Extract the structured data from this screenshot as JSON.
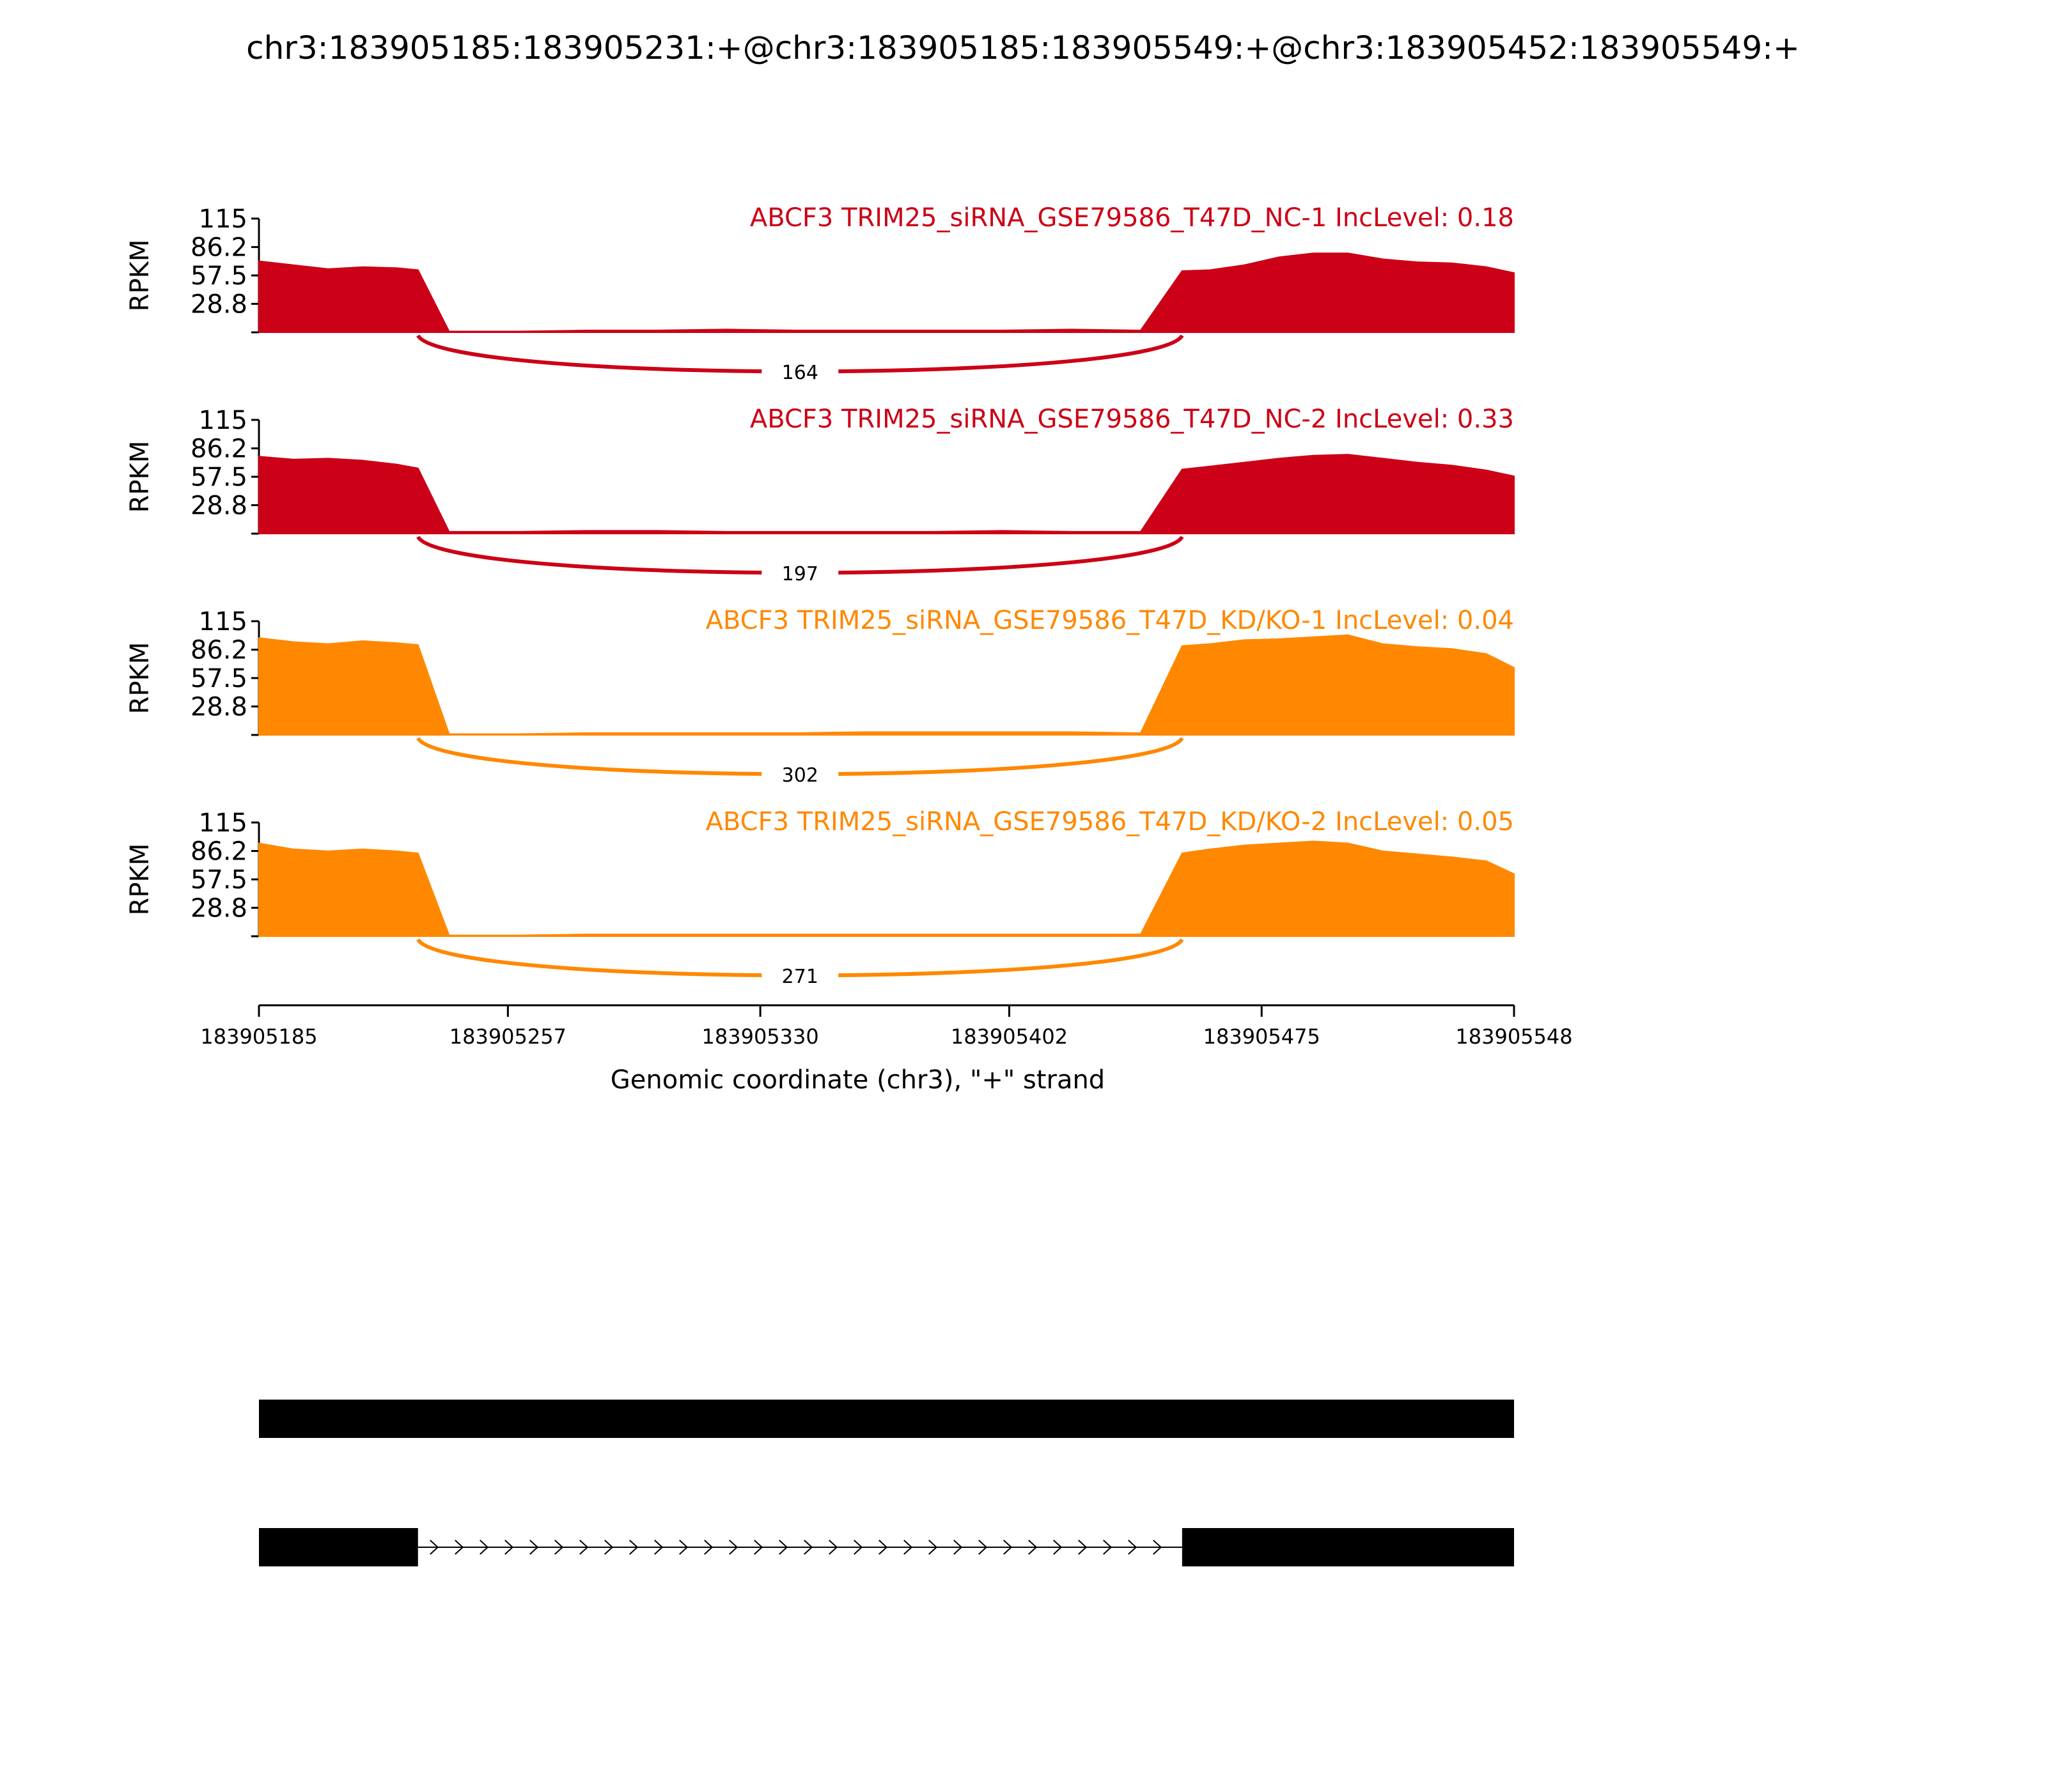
{
  "title": "chr3:183905185:183905231:+@chr3:183905185:183905549:+@chr3:183905452:183905549:+",
  "chart_data": {
    "type": "area",
    "ylabel": "RPKM",
    "yticks": [
      "115",
      "86.2",
      "57.5",
      "28.8"
    ],
    "ytick_values": [
      115,
      86.2,
      57.5,
      28.8
    ],
    "ylim": [
      0,
      115
    ],
    "xlim": [
      183905185,
      183905548
    ],
    "xticks": [
      "183905185",
      "183905257",
      "183905330",
      "183905402",
      "183905475",
      "183905548"
    ],
    "xtick_values": [
      183905185,
      183905257,
      183905330,
      183905402,
      183905475,
      183905548
    ],
    "xlabel": "Genomic coordinate (chr3), \"+\" strand",
    "x": [
      183905185,
      183905195,
      183905205,
      183905215,
      183905225,
      183905231,
      183905240,
      183905260,
      183905280,
      183905300,
      183905320,
      183905340,
      183905360,
      183905380,
      183905400,
      183905420,
      183905440,
      183905452,
      183905460,
      183905470,
      183905480,
      183905490,
      183905500,
      183905510,
      183905520,
      183905530,
      183905540,
      183905548
    ],
    "series": [
      {
        "name": "ABCF3 TRIM25_siRNA_GSE79586_T47D_NC-1 IncLevel: 0.18",
        "color": "#cc0016",
        "junction_count": "164",
        "values": [
          72,
          68,
          64,
          66,
          65,
          63,
          1,
          1,
          2,
          2,
          3,
          2,
          2,
          2,
          2,
          3,
          2,
          62,
          63,
          68,
          76,
          80,
          80,
          74,
          71,
          70,
          66,
          60
        ]
      },
      {
        "name": "ABCF3 TRIM25_siRNA_GSE79586_T47D_NC-2 IncLevel: 0.33",
        "color": "#cc0016",
        "junction_count": "197",
        "values": [
          78,
          75,
          76,
          74,
          70,
          66,
          2,
          2,
          3,
          3,
          2,
          2,
          2,
          2,
          3,
          2,
          2,
          65,
          68,
          72,
          76,
          79,
          80,
          76,
          72,
          69,
          64,
          58
        ]
      },
      {
        "name": "ABCF3 TRIM25_siRNA_GSE79586_T47D_KD/KO-1 IncLevel: 0.04",
        "color": "#ff8800",
        "junction_count": "302",
        "values": [
          98,
          94,
          92,
          95,
          93,
          91,
          1,
          1,
          2,
          2,
          2,
          2,
          3,
          3,
          3,
          3,
          2,
          90,
          92,
          96,
          97,
          99,
          101,
          92,
          89,
          87,
          82,
          68
        ]
      },
      {
        "name": "ABCF3 TRIM25_siRNA_GSE79586_T47D_KD/KO-2 IncLevel: 0.05",
        "color": "#ff8800",
        "junction_count": "271",
        "values": [
          94,
          88,
          86,
          88,
          86,
          84,
          1,
          1,
          2,
          2,
          2,
          2,
          2,
          2,
          2,
          2,
          2,
          84,
          88,
          92,
          94,
          96,
          94,
          86,
          83,
          80,
          76,
          63
        ]
      }
    ],
    "transcripts": [
      {
        "exons": [
          [
            183905185,
            183905548
          ]
        ]
      },
      {
        "exons": [
          [
            183905185,
            183905231
          ],
          [
            183905452,
            183905548
          ]
        ]
      }
    ]
  }
}
